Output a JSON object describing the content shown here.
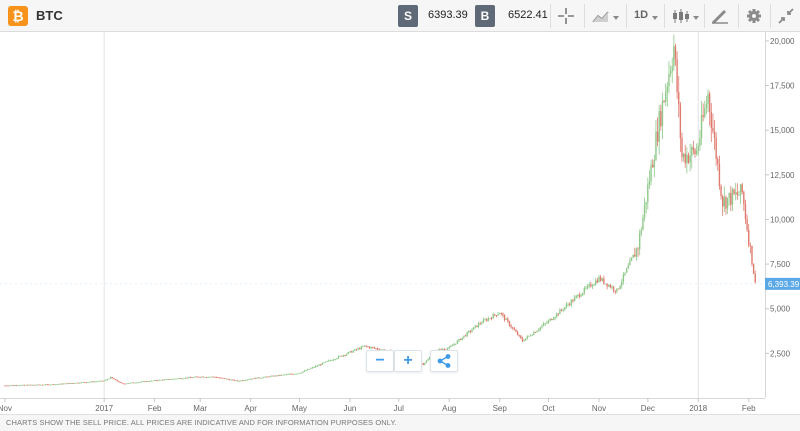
{
  "header": {
    "logo": "₿",
    "symbol": "BTC",
    "sell_label": "S",
    "sell_price": "6393.39",
    "buy_label": "B",
    "buy_price": "6522.41",
    "interval": "1D",
    "icons": [
      "crosshair-icon",
      "line-chart-icon",
      "candlestick-icon",
      "draw-icon",
      "gear-icon",
      "collapse-icon"
    ]
  },
  "chart_data": {
    "type": "candlestick",
    "instrument": "BTC",
    "price_label": "6,393.39",
    "x_axis_labels": [
      "Nov",
      "2017",
      "Feb",
      "Mar",
      "Apr",
      "May",
      "Jun",
      "Jul",
      "Aug",
      "Sep",
      "Oct",
      "Nov",
      "Dec",
      "2018",
      "Feb"
    ],
    "y_axis_labels": [
      "2,500",
      "5,000",
      "7,500",
      "10,000",
      "12,500",
      "15,000",
      "17,500",
      "20,000"
    ],
    "ylim": [
      0,
      20500
    ],
    "up_color": "#8fc98a",
    "down_color": "#e07a6e",
    "anchors": [
      [
        "2016-11-01",
        700
      ],
      [
        "2016-12-01",
        760
      ],
      [
        "2017-01-01",
        960
      ],
      [
        "2017-01-05",
        1150
      ],
      [
        "2017-01-12",
        800
      ],
      [
        "2017-02-01",
        980
      ],
      [
        "2017-03-01",
        1200
      ],
      [
        "2017-03-10",
        1180
      ],
      [
        "2017-03-24",
        950
      ],
      [
        "2017-04-01",
        1080
      ],
      [
        "2017-05-01",
        1400
      ],
      [
        "2017-05-25",
        2300
      ],
      [
        "2017-06-10",
        2900
      ],
      [
        "2017-07-01",
        2500
      ],
      [
        "2017-07-16",
        1900
      ],
      [
        "2017-07-25",
        2700
      ],
      [
        "2017-08-01",
        2800
      ],
      [
        "2017-08-20",
        4200
      ],
      [
        "2017-09-01",
        4800
      ],
      [
        "2017-09-15",
        3200
      ],
      [
        "2017-10-01",
        4300
      ],
      [
        "2017-10-20",
        5800
      ],
      [
        "2017-11-01",
        6700
      ],
      [
        "2017-11-12",
        6000
      ],
      [
        "2017-11-25",
        8500
      ],
      [
        "2017-12-07",
        15000
      ],
      [
        "2017-12-17",
        19700
      ],
      [
        "2017-12-22",
        13500
      ],
      [
        "2017-12-31",
        13800
      ],
      [
        "2018-01-07",
        17000
      ],
      [
        "2018-01-16",
        11000
      ],
      [
        "2018-01-28",
        11500
      ],
      [
        "2018-02-05",
        6393
      ]
    ]
  },
  "zoom": {
    "zoom_out": "−",
    "zoom_in": "+",
    "share": "share-icon"
  },
  "footer": {
    "disclaimer": "CHARTS SHOW THE SELL PRICE. ALL PRICES ARE INDICATIVE AND FOR INFORMATION PURPOSES ONLY."
  }
}
